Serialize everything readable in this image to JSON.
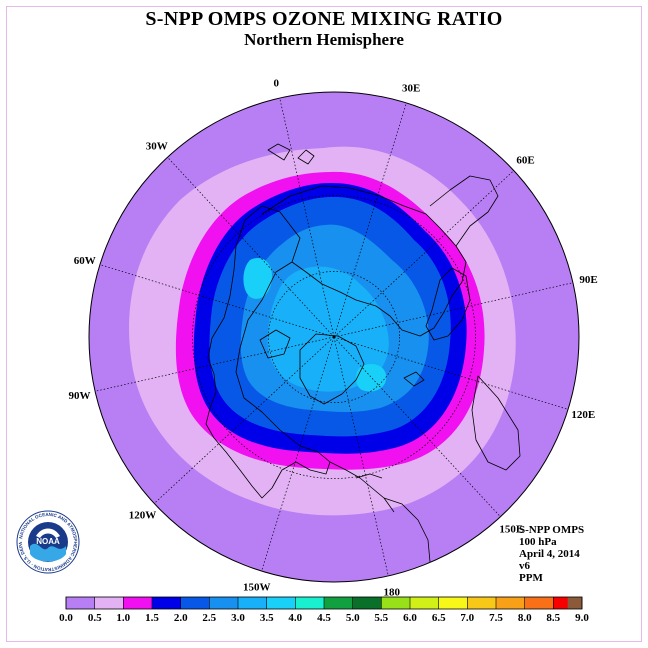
{
  "title": "S-NPP OMPS OZONE MIXING RATIO",
  "subtitle": "Northern Hemisphere",
  "longitude_labels": [
    {
      "text": "90E",
      "lon": 90
    },
    {
      "text": "60E",
      "lon": 60
    },
    {
      "text": "30E",
      "lon": 30
    },
    {
      "text": "0",
      "lon": 0
    },
    {
      "text": "30W",
      "lon": -30
    },
    {
      "text": "60W",
      "lon": -60
    },
    {
      "text": "90W",
      "lon": -90
    },
    {
      "text": "120W",
      "lon": -120
    },
    {
      "text": "150W",
      "lon": -150
    },
    {
      "text": "180",
      "lon": 180
    },
    {
      "text": "150E",
      "lon": 150
    },
    {
      "text": "120E",
      "lon": 120
    }
  ],
  "info": {
    "instrument": "S-NPP OMPS",
    "level": "100 hPa",
    "date": "April 4, 2014",
    "version": "v6",
    "units": "PPM"
  },
  "logo": {
    "text": "NOAA",
    "ring_text": "NATIONAL OCEANIC AND ATMOSPHERIC ADMINISTRATION · U.S. DEPARTMENT OF COMMERCE"
  },
  "colorbar": {
    "labels": [
      "0.0",
      "0.5",
      "1.0",
      "1.5",
      "2.0",
      "2.5",
      "3.0",
      "3.5",
      "4.0",
      "4.5",
      "5.0",
      "5.5",
      "6.0",
      "6.5",
      "7.0",
      "7.5",
      "8.0",
      "8.5",
      "9.0"
    ],
    "colors": [
      "#b87ef4",
      "#e2b2f4",
      "#f010f0",
      "#0000e8",
      "#0858e8",
      "#1890f0",
      "#18b0f8",
      "#18d0f8",
      "#18f0d0",
      "#10a040",
      "#087028",
      "#98e018",
      "#d0f018",
      "#f8f818",
      "#f8c818",
      "#f8a018",
      "#f87018",
      "#f80000",
      "#8a5a3a"
    ]
  },
  "chart_data": {
    "type": "heatmap",
    "projection": "north-polar-stereographic",
    "title": "S-NPP OMPS OZONE MIXING RATIO",
    "subtitle": "Northern Hemisphere",
    "units": "PPM",
    "levels": [
      0.0,
      0.5,
      1.0,
      1.5,
      2.0,
      2.5,
      3.0,
      3.5,
      4.0,
      4.5,
      5.0,
      5.5,
      6.0,
      6.5,
      7.0,
      7.5,
      8.0,
      8.5,
      9.0
    ],
    "contour_bands": [
      {
        "range": [
          0.0,
          0.5
        ]
      },
      {
        "range": [
          0.5,
          1.0
        ]
      },
      {
        "range": [
          1.0,
          1.5
        ]
      },
      {
        "range": [
          1.5,
          2.0
        ]
      },
      {
        "range": [
          2.0,
          2.5
        ]
      },
      {
        "range": [
          2.5,
          3.0
        ]
      },
      {
        "range": [
          3.0,
          3.5
        ]
      }
    ],
    "colors": {
      "band_0": "#b87ef4",
      "band_1": "#e2b2f4",
      "band_2": "#f010f0",
      "band_3": "#0000e8",
      "band_4": "#0858e8",
      "band_5": "#1890f0",
      "band_6": "#18b0f8",
      "band_7": "#18d0f8"
    }
  }
}
